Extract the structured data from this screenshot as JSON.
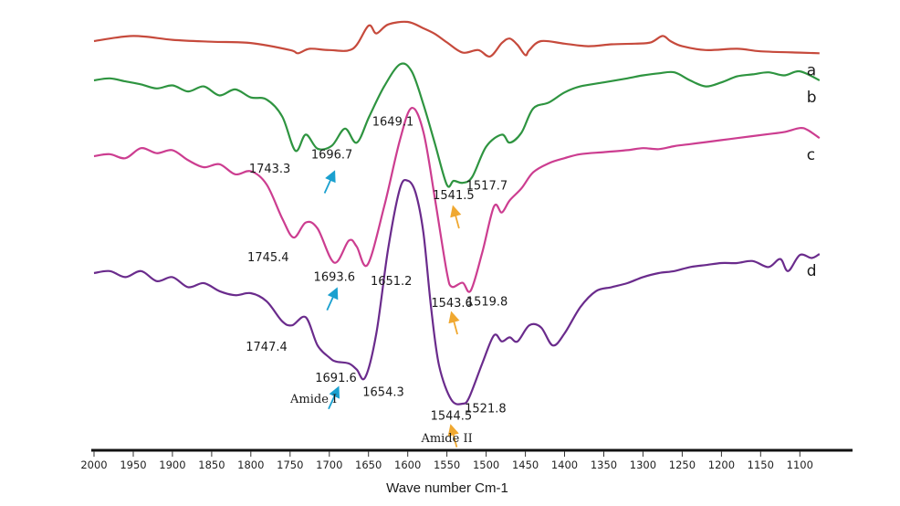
{
  "chart_data": {
    "type": "line",
    "title": "",
    "xlabel": "Wave number Cm-1",
    "ylabel": "",
    "xlim": [
      2000,
      1070
    ],
    "x_reversed": true,
    "xticks": [
      2000,
      1950,
      1900,
      1850,
      1800,
      1750,
      1700,
      1650,
      1600,
      1550,
      1500,
      1450,
      1400,
      1350,
      1300,
      1250,
      1200,
      1150,
      1100
    ],
    "series": [
      {
        "name": "a",
        "color": "#c64a3c",
        "x": [
          2000,
          1950,
          1900,
          1850,
          1800,
          1750,
          1740,
          1725,
          1700,
          1670,
          1650,
          1640,
          1625,
          1600,
          1580,
          1565,
          1550,
          1530,
          1510,
          1495,
          1480,
          1470,
          1460,
          1450,
          1445,
          1430,
          1400,
          1370,
          1340,
          1310,
          1290,
          1275,
          1265,
          1250,
          1220,
          1180,
          1150,
          1100,
          1075
        ],
        "y": [
          0.0,
          0.4,
          0.1,
          -0.05,
          -0.15,
          -0.7,
          -0.95,
          -0.6,
          -0.7,
          -0.6,
          1.2,
          0.6,
          1.3,
          1.5,
          1.0,
          0.55,
          -0.1,
          -0.9,
          -0.7,
          -1.2,
          -0.15,
          0.2,
          -0.3,
          -1.1,
          -0.7,
          0.0,
          -0.2,
          -0.4,
          -0.25,
          -0.2,
          -0.1,
          0.4,
          0.0,
          -0.4,
          -0.7,
          -0.6,
          -0.8,
          -0.9,
          -0.95
        ]
      },
      {
        "name": "b",
        "color": "#2e9440",
        "x": [
          2000,
          1980,
          1960,
          1940,
          1920,
          1900,
          1880,
          1860,
          1840,
          1820,
          1800,
          1780,
          1760,
          1743.3,
          1730,
          1715,
          1696.7,
          1680,
          1665,
          1649.1,
          1630,
          1610,
          1595,
          1580,
          1565,
          1550,
          1541.5,
          1530,
          1517.7,
          1500,
          1480,
          1470,
          1455,
          1440,
          1420,
          1400,
          1380,
          1350,
          1320,
          1300,
          1280,
          1260,
          1240,
          1220,
          1200,
          1180,
          1160,
          1140,
          1120,
          1100,
          1075
        ],
        "y": [
          0.0,
          0.1,
          -0.05,
          -0.2,
          -0.4,
          -0.25,
          -0.55,
          -0.3,
          -0.75,
          -0.45,
          -0.85,
          -0.95,
          -1.8,
          -3.5,
          -2.7,
          -3.4,
          -3.25,
          -2.4,
          -3.1,
          -1.8,
          -0.3,
          0.8,
          0.45,
          -1.2,
          -3.2,
          -5.2,
          -5.0,
          -5.1,
          -4.8,
          -3.3,
          -2.7,
          -3.1,
          -2.6,
          -1.4,
          -1.1,
          -0.6,
          -0.3,
          -0.1,
          0.1,
          0.25,
          0.35,
          0.4,
          0.0,
          -0.3,
          -0.1,
          0.2,
          0.3,
          0.4,
          0.25,
          0.45,
          0.0
        ]
      },
      {
        "name": "c",
        "color": "#cc3d90",
        "x": [
          2000,
          1980,
          1960,
          1940,
          1920,
          1900,
          1880,
          1860,
          1840,
          1820,
          1800,
          1780,
          1760,
          1745.4,
          1730,
          1715,
          1693.6,
          1675,
          1665,
          1651.2,
          1630,
          1610,
          1595,
          1580,
          1565,
          1550,
          1543.6,
          1530,
          1519.8,
          1505,
          1490,
          1480,
          1470,
          1455,
          1440,
          1420,
          1400,
          1380,
          1350,
          1320,
          1300,
          1280,
          1260,
          1240,
          1220,
          1200,
          1180,
          1160,
          1140,
          1120,
          1100,
          1090,
          1075
        ],
        "y": [
          0.0,
          0.1,
          -0.1,
          0.4,
          0.15,
          0.3,
          -0.2,
          -0.55,
          -0.4,
          -0.9,
          -0.75,
          -1.4,
          -3.1,
          -4.05,
          -3.3,
          -3.6,
          -5.3,
          -4.2,
          -4.5,
          -5.4,
          -2.5,
          0.8,
          2.4,
          1.2,
          -2.2,
          -5.8,
          -6.5,
          -6.3,
          -6.7,
          -4.8,
          -2.5,
          -2.8,
          -2.2,
          -1.6,
          -0.8,
          -0.35,
          -0.1,
          0.1,
          0.2,
          0.3,
          0.4,
          0.35,
          0.5,
          0.6,
          0.7,
          0.8,
          0.9,
          1.0,
          1.1,
          1.2,
          1.4,
          1.3,
          0.9
        ]
      },
      {
        "name": "d",
        "color": "#6a2b8c",
        "x": [
          2000,
          1980,
          1960,
          1940,
          1920,
          1900,
          1880,
          1860,
          1840,
          1820,
          1800,
          1780,
          1760,
          1747.4,
          1730,
          1715,
          1700,
          1691.6,
          1675,
          1665,
          1654.3,
          1640,
          1625,
          1610,
          1600,
          1590,
          1580,
          1570,
          1560,
          1544.5,
          1530,
          1521.8,
          1505,
          1490,
          1480,
          1470,
          1460,
          1445,
          1430,
          1415,
          1400,
          1380,
          1360,
          1340,
          1320,
          1300,
          1280,
          1260,
          1240,
          1220,
          1200,
          1180,
          1160,
          1140,
          1125,
          1115,
          1100,
          1085,
          1075
        ],
        "y": [
          0.0,
          0.1,
          -0.2,
          0.1,
          -0.4,
          -0.2,
          -0.7,
          -0.5,
          -0.9,
          -1.1,
          -1.0,
          -1.4,
          -2.4,
          -2.6,
          -2.2,
          -3.6,
          -4.2,
          -4.4,
          -4.5,
          -4.8,
          -5.2,
          -3.0,
          1.2,
          4.2,
          4.6,
          4.0,
          2.0,
          -1.8,
          -4.6,
          -6.3,
          -6.5,
          -6.2,
          -4.5,
          -3.1,
          -3.4,
          -3.2,
          -3.4,
          -2.6,
          -2.7,
          -3.6,
          -3.0,
          -1.7,
          -0.9,
          -0.7,
          -0.5,
          -0.2,
          0.0,
          0.1,
          0.3,
          0.4,
          0.5,
          0.5,
          0.6,
          0.3,
          0.7,
          0.1,
          0.9,
          0.75,
          0.95
        ]
      }
    ],
    "peak_labels": [
      {
        "series": "b",
        "x": 1743.3,
        "label": "1743.3"
      },
      {
        "series": "b",
        "x": 1696.7,
        "label": "1696.7"
      },
      {
        "series": "b",
        "x": 1649.1,
        "label": "1649.1"
      },
      {
        "series": "b",
        "x": 1541.5,
        "label": "1541.5"
      },
      {
        "series": "b",
        "x": 1517.7,
        "label": "1517.7"
      },
      {
        "series": "c",
        "x": 1745.4,
        "label": "1745.4"
      },
      {
        "series": "c",
        "x": 1693.6,
        "label": "1693.6"
      },
      {
        "series": "c",
        "x": 1651.2,
        "label": "1651.2"
      },
      {
        "series": "c",
        "x": 1543.6,
        "label": "1543.6"
      },
      {
        "series": "c",
        "x": 1519.8,
        "label": "1519.8"
      },
      {
        "series": "d",
        "x": 1747.4,
        "label": "1747.4"
      },
      {
        "series": "d",
        "x": 1691.6,
        "label": "1691.6"
      },
      {
        "series": "d",
        "x": 1654.3,
        "label": "1654.3"
      },
      {
        "series": "d",
        "x": 1544.5,
        "label": "1544.5"
      },
      {
        "series": "d",
        "x": 1521.8,
        "label": "1521.8"
      }
    ],
    "annotations": [
      {
        "text": "Amide I",
        "x": 1720
      },
      {
        "text": "Amide II",
        "x": 1550
      }
    ],
    "arrows": [
      {
        "series": "b",
        "x": 1696.7,
        "color": "#1aa0cf"
      },
      {
        "series": "b",
        "x": 1541.5,
        "color": "#f0a830"
      },
      {
        "series": "c",
        "x": 1693.6,
        "color": "#1aa0cf"
      },
      {
        "series": "c",
        "x": 1543.6,
        "color": "#f0a830"
      },
      {
        "series": "d",
        "x": 1691.6,
        "color": "#1aa0cf"
      },
      {
        "series": "d",
        "x": 1544.5,
        "color": "#f0a830"
      }
    ],
    "grid": false
  }
}
